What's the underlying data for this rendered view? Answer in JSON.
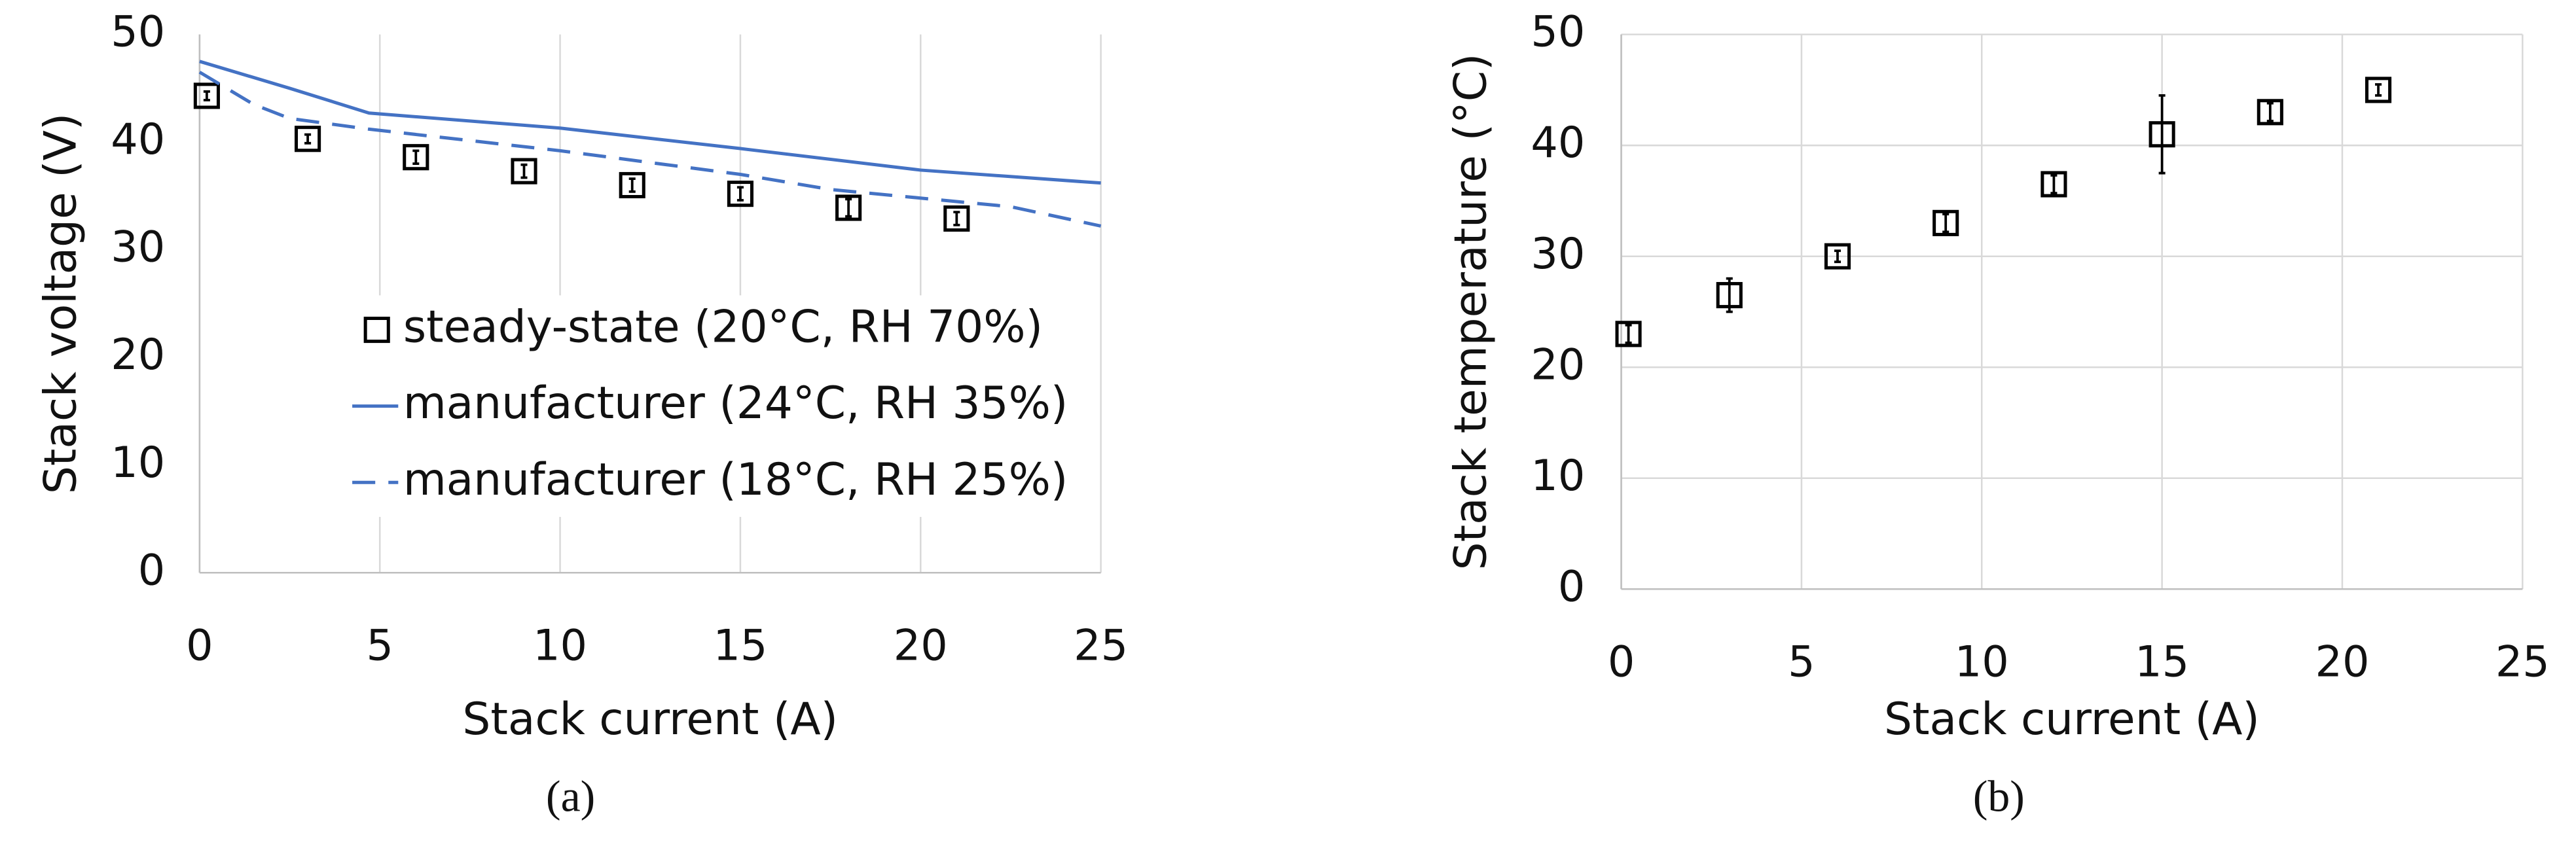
{
  "chart_data": [
    {
      "type": "line",
      "label": "(a)",
      "x_label": "Stack current (A)",
      "y_label": "Stack voltage (V)",
      "xlim": [
        0,
        25
      ],
      "xticks": [
        0,
        5,
        10,
        15,
        20,
        25
      ],
      "ylim": [
        0,
        50
      ],
      "yticks": [
        0,
        10,
        20,
        30,
        40,
        50
      ],
      "grid": "x",
      "legend": "center",
      "series": [
        {
          "name": "steady-state (20°C, RH 70%)",
          "color": "#000000",
          "style": "marker",
          "x": [
            0.2,
            3,
            6,
            9,
            12,
            15,
            18,
            21
          ],
          "values": [
            44.3,
            40.3,
            38.6,
            37.3,
            36,
            35.2,
            33.9,
            32.9
          ],
          "errors": [
            0.4,
            0.4,
            0.6,
            0.6,
            0.6,
            0.6,
            0.8,
            0.6
          ]
        },
        {
          "name": "manufacturer (24°C, RH 35%)",
          "color": "#4472c4",
          "style": "solid",
          "x": [
            0,
            2.5,
            4.7,
            10,
            15,
            20,
            25
          ],
          "values": [
            47.5,
            45,
            42.7,
            41.3,
            39.4,
            37.4,
            36.2
          ]
        },
        {
          "name": "manufacturer (18°C, RH 25%)",
          "color": "#4472c4",
          "style": "dashed",
          "x": [
            0,
            1.5,
            2.5,
            4.7,
            10,
            15,
            17.5,
            20,
            22.5,
            25
          ],
          "values": [
            46.5,
            43.5,
            42.2,
            41.2,
            39.2,
            37,
            35.6,
            34.8,
            34,
            32.2
          ]
        }
      ]
    },
    {
      "type": "scatter",
      "label": "(b)",
      "x_label": "Stack current (A)",
      "y_label": "Stack temperature (°C)",
      "xlim": [
        0,
        25
      ],
      "xticks": [
        0,
        5,
        10,
        15,
        20,
        25
      ],
      "ylim": [
        0,
        50
      ],
      "yticks": [
        0,
        10,
        20,
        30,
        40,
        50
      ],
      "grid": "both",
      "series": [
        {
          "color": "#000000",
          "style": "marker",
          "x": [
            0.2,
            3,
            6,
            9,
            12,
            15,
            18,
            21
          ],
          "values": [
            23,
            26.5,
            30,
            33,
            36.5,
            41,
            43,
            45
          ],
          "errors": [
            0.8,
            1.5,
            0.5,
            0.8,
            0.8,
            3.5,
            0.8,
            0.5
          ]
        }
      ]
    }
  ]
}
